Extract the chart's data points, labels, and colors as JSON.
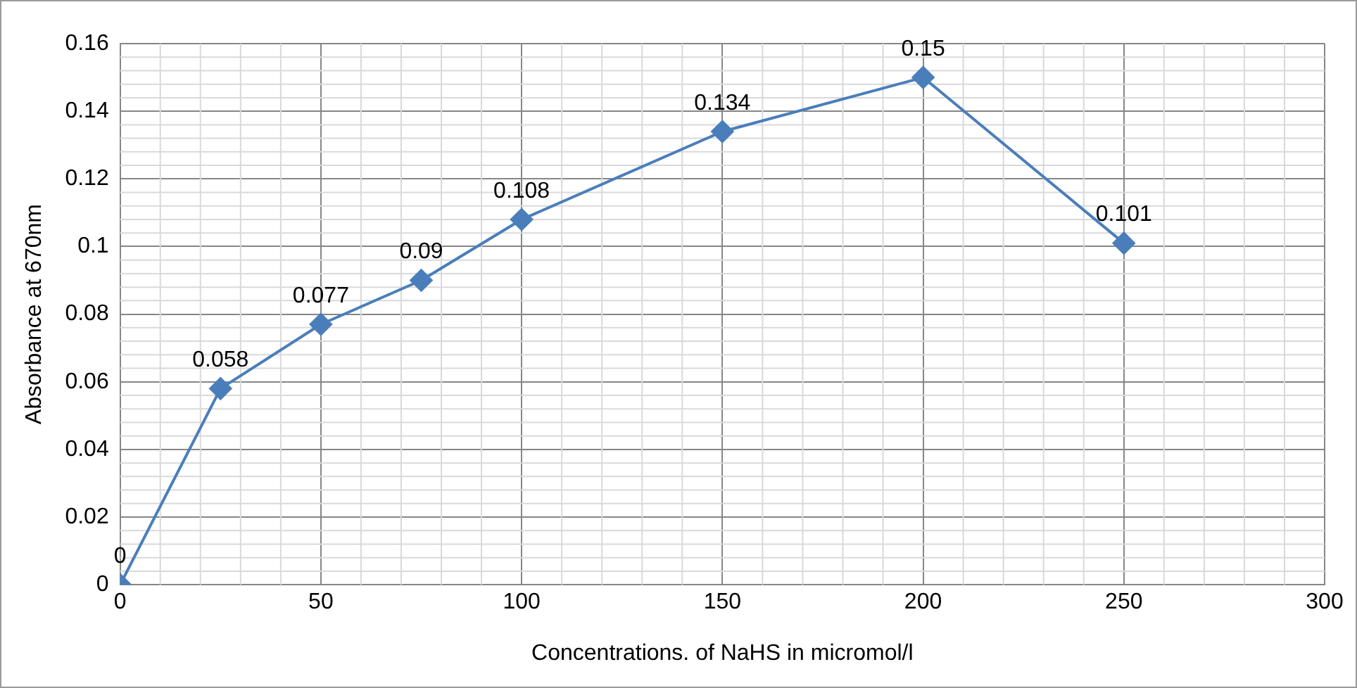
{
  "chart_data": {
    "type": "line",
    "xlabel": "Concentrations. of NaHS in micromol/l",
    "ylabel": "Absorbance at 670nm",
    "x": [
      0,
      25,
      50,
      75,
      100,
      150,
      200,
      250
    ],
    "series": [
      {
        "color": "#4a7ebb",
        "values": [
          0,
          0.058,
          0.077,
          0.09,
          0.108,
          0.134,
          0.15,
          0.101
        ]
      }
    ],
    "xlim": [
      0,
      300
    ],
    "xticks": [
      0,
      50,
      100,
      150,
      200,
      250,
      300
    ],
    "ylim": [
      0,
      0.16
    ],
    "yticks": [
      0,
      0.02,
      0.04,
      0.06,
      0.08,
      0.1,
      0.12,
      0.14,
      0.16
    ],
    "grid": true,
    "legend": false,
    "marker": "diamond",
    "line_style": "solid",
    "data_labels": true
  }
}
